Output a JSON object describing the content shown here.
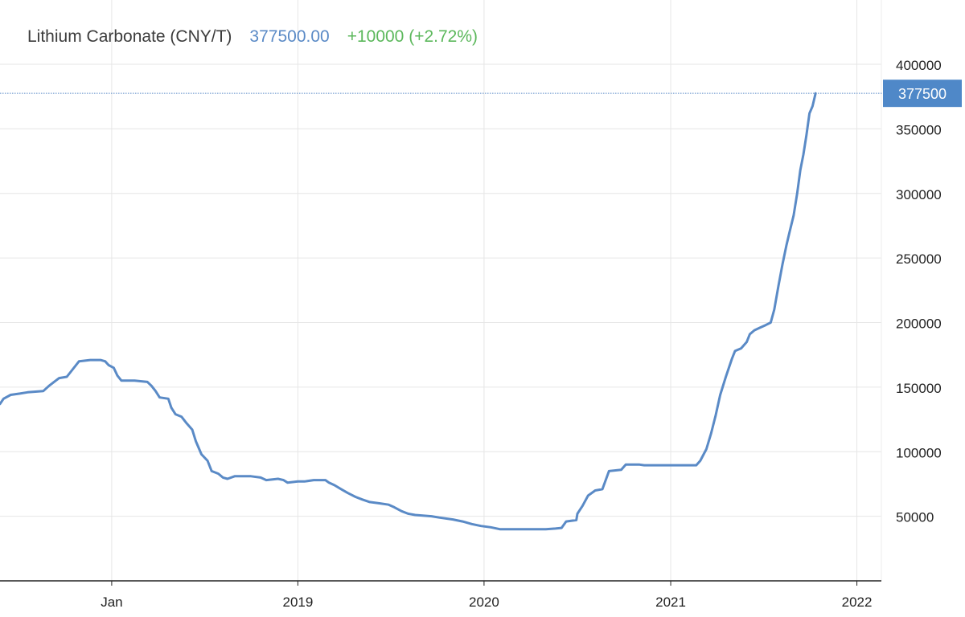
{
  "header": {
    "title": "Lithium Carbonate (CNY/T)",
    "price": "377500.00",
    "change": "+10000 (+2.72%)"
  },
  "colors": {
    "line": "#5a8ac6",
    "price": "#5a8ac6",
    "change": "#5cb85c",
    "grid": "#e6e6e6",
    "axis": "#222222",
    "label": "#222222",
    "badge_bg": "#4f88c8",
    "badge_text": "#ffffff"
  },
  "chart_data": {
    "type": "line",
    "title": "Lithium Carbonate (CNY/T)",
    "xlabel": "",
    "ylabel": "",
    "x_ticks": [
      {
        "label": "Jan",
        "x": "2018-01-01"
      },
      {
        "label": "2019",
        "x": "2019-01-01"
      },
      {
        "label": "2020",
        "x": "2020-01-01"
      },
      {
        "label": "2021",
        "x": "2021-01-01"
      },
      {
        "label": "2022",
        "x": "2022-01-01"
      }
    ],
    "y_ticks": [
      50000,
      100000,
      150000,
      200000,
      250000,
      300000,
      350000,
      400000
    ],
    "ylim": [
      0,
      400000
    ],
    "xlim": [
      "2017-05-27",
      "2022-02-18"
    ],
    "grid": true,
    "last_value_label": "377500",
    "series": [
      {
        "points": [
          [
            "2017-05-27",
            137000
          ],
          [
            "2017-06-03",
            141000
          ],
          [
            "2017-06-17",
            144000
          ],
          [
            "2017-07-05",
            145000
          ],
          [
            "2017-07-20",
            146000
          ],
          [
            "2017-08-20",
            147000
          ],
          [
            "2017-08-31",
            151000
          ],
          [
            "2017-09-10",
            154000
          ],
          [
            "2017-09-20",
            157000
          ],
          [
            "2017-10-05",
            158000
          ],
          [
            "2017-10-15",
            163000
          ],
          [
            "2017-10-29",
            170000
          ],
          [
            "2017-11-20",
            171000
          ],
          [
            "2017-12-10",
            171000
          ],
          [
            "2017-12-19",
            170000
          ],
          [
            "2017-12-26",
            167000
          ],
          [
            "2018-01-05",
            165000
          ],
          [
            "2018-01-12",
            159000
          ],
          [
            "2018-01-20",
            155000
          ],
          [
            "2018-02-15",
            155000
          ],
          [
            "2018-03-12",
            154000
          ],
          [
            "2018-03-20",
            151000
          ],
          [
            "2018-03-28",
            147000
          ],
          [
            "2018-04-05",
            142000
          ],
          [
            "2018-04-22",
            141000
          ],
          [
            "2018-04-28",
            134000
          ],
          [
            "2018-05-06",
            129000
          ],
          [
            "2018-05-18",
            127000
          ],
          [
            "2018-05-28",
            122000
          ],
          [
            "2018-06-08",
            117000
          ],
          [
            "2018-06-15",
            108000
          ],
          [
            "2018-06-26",
            98000
          ],
          [
            "2018-07-08",
            93000
          ],
          [
            "2018-07-16",
            85000
          ],
          [
            "2018-07-29",
            83000
          ],
          [
            "2018-08-07",
            80000
          ],
          [
            "2018-08-16",
            79000
          ],
          [
            "2018-08-30",
            81000
          ],
          [
            "2018-10-01",
            81000
          ],
          [
            "2018-10-20",
            80000
          ],
          [
            "2018-10-31",
            78000
          ],
          [
            "2018-11-23",
            79000
          ],
          [
            "2018-12-04",
            78000
          ],
          [
            "2018-12-12",
            76000
          ],
          [
            "2019-01-01",
            77000
          ],
          [
            "2019-01-15",
            77000
          ],
          [
            "2019-02-01",
            78000
          ],
          [
            "2019-02-24",
            78000
          ],
          [
            "2019-03-03",
            76000
          ],
          [
            "2019-03-14",
            74000
          ],
          [
            "2019-03-27",
            71000
          ],
          [
            "2019-04-09",
            68000
          ],
          [
            "2019-04-24",
            65000
          ],
          [
            "2019-05-07",
            63000
          ],
          [
            "2019-05-22",
            61000
          ],
          [
            "2019-06-10",
            60000
          ],
          [
            "2019-06-28",
            59000
          ],
          [
            "2019-07-09",
            57000
          ],
          [
            "2019-07-23",
            54000
          ],
          [
            "2019-08-05",
            52000
          ],
          [
            "2019-08-19",
            51000
          ],
          [
            "2019-09-20",
            50000
          ],
          [
            "2019-10-05",
            49000
          ],
          [
            "2019-11-01",
            47500
          ],
          [
            "2019-11-20",
            46000
          ],
          [
            "2019-12-08",
            44000
          ],
          [
            "2019-12-26",
            42500
          ],
          [
            "2020-01-14",
            41500
          ],
          [
            "2020-02-01",
            40000
          ],
          [
            "2020-02-15",
            40000
          ],
          [
            "2020-05-01",
            40000
          ],
          [
            "2020-05-20",
            40500
          ],
          [
            "2020-06-01",
            41000
          ],
          [
            "2020-06-10",
            46000
          ],
          [
            "2020-06-30",
            47000
          ],
          [
            "2020-07-02",
            52000
          ],
          [
            "2020-07-12",
            58000
          ],
          [
            "2020-07-23",
            66000
          ],
          [
            "2020-08-06",
            70000
          ],
          [
            "2020-08-20",
            71000
          ],
          [
            "2020-09-02",
            85000
          ],
          [
            "2020-09-26",
            86000
          ],
          [
            "2020-10-05",
            90000
          ],
          [
            "2020-11-01",
            90000
          ],
          [
            "2020-11-10",
            89500
          ],
          [
            "2021-02-20",
            89500
          ],
          [
            "2021-02-28",
            93000
          ],
          [
            "2021-03-12",
            102000
          ],
          [
            "2021-03-21",
            114000
          ],
          [
            "2021-03-30",
            128000
          ],
          [
            "2021-04-08",
            144000
          ],
          [
            "2021-04-19",
            158000
          ],
          [
            "2021-05-01",
            172000
          ],
          [
            "2021-05-07",
            178000
          ],
          [
            "2021-05-19",
            180000
          ],
          [
            "2021-05-30",
            185000
          ],
          [
            "2021-06-05",
            191000
          ],
          [
            "2021-06-14",
            194000
          ],
          [
            "2021-06-25",
            196000
          ],
          [
            "2021-07-06",
            198000
          ],
          [
            "2021-07-16",
            200000
          ],
          [
            "2021-07-23",
            210000
          ],
          [
            "2021-07-31",
            228000
          ],
          [
            "2021-08-08",
            245000
          ],
          [
            "2021-08-16",
            260000
          ],
          [
            "2021-08-22",
            270000
          ],
          [
            "2021-08-30",
            283000
          ],
          [
            "2021-09-06",
            300000
          ],
          [
            "2021-09-12",
            318000
          ],
          [
            "2021-09-18",
            330000
          ],
          [
            "2021-09-24",
            345000
          ],
          [
            "2021-09-30",
            362000
          ],
          [
            "2021-10-06",
            367500
          ],
          [
            "2021-10-12",
            377500
          ]
        ]
      }
    ]
  }
}
